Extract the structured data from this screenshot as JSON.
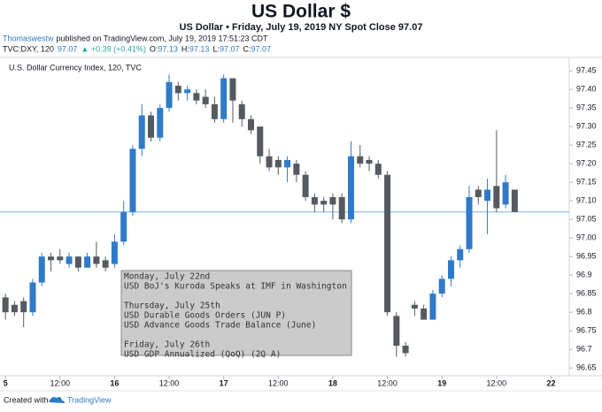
{
  "chart_data": {
    "type": "candlestick",
    "title": "US Dollar $",
    "subtitle": "US Dollar • Friday, July 19, 2019 NY Spot Close 97.07",
    "author": "Thomaswestw",
    "published": "published on TradingView.com, July 19, 2019 17:51:23 CDT",
    "quote": [
      {
        "text": "TVC:DXY, 120",
        "color": "#131722"
      },
      {
        "text": "97.07",
        "color": "#2f7ac9"
      },
      {
        "text": "▲ +0.39 (+0.41%)",
        "color": "#26a69a"
      },
      {
        "text": "O:",
        "color": "#131722"
      },
      {
        "text": "97.13",
        "color": "#2f7ac9"
      },
      {
        "text": "H:",
        "color": "#131722"
      },
      {
        "text": "97.13",
        "color": "#2f7ac9"
      },
      {
        "text": "L:",
        "color": "#131722"
      },
      {
        "text": "97.07",
        "color": "#2f7ac9"
      },
      {
        "text": "C:",
        "color": "#131722"
      },
      {
        "text": "97.07",
        "color": "#2f7ac9"
      }
    ],
    "series_name": "U.S. Dollar Currency Index, 120, TVC",
    "up_color": "#2f7ac9",
    "down_color": "#555a60",
    "x": [
      0,
      1,
      2,
      3,
      4,
      5,
      6,
      7,
      8,
      9,
      10,
      11,
      12,
      13,
      14,
      15,
      16,
      17,
      18,
      19,
      20,
      21,
      22,
      23,
      24,
      25,
      26,
      27,
      28,
      29,
      30,
      31,
      32,
      33,
      34,
      35,
      36,
      37,
      38,
      39,
      40,
      41,
      42,
      43,
      44,
      45,
      46,
      47,
      48,
      49,
      50,
      51,
      52,
      53,
      54,
      55,
      56
    ],
    "open": [
      96.84,
      96.82,
      96.83,
      96.8,
      96.88,
      96.95,
      96.95,
      96.93,
      96.95,
      96.92,
      96.95,
      96.94,
      96.93,
      96.99,
      97.07,
      97.24,
      97.33,
      97.27,
      97.35,
      97.41,
      97.39,
      97.39,
      97.38,
      97.36,
      97.32,
      97.43,
      97.36,
      97.32,
      97.3,
      97.22,
      97.21,
      97.19,
      97.2,
      97.17,
      97.11,
      97.1,
      97.11,
      97.11,
      97.05,
      97.22,
      97.21,
      97.2,
      97.17,
      96.79,
      96.71,
      96.82,
      96.81,
      96.78,
      96.85,
      96.89,
      96.94,
      96.97,
      97.13,
      97.1,
      97.14,
      97.09,
      97.13
    ],
    "high": [
      96.85,
      96.83,
      96.84,
      96.89,
      96.96,
      96.96,
      96.97,
      96.96,
      96.95,
      96.96,
      96.99,
      96.95,
      97.01,
      97.1,
      97.25,
      97.36,
      97.34,
      97.36,
      97.44,
      97.42,
      97.41,
      97.4,
      97.4,
      97.38,
      97.44,
      97.43,
      97.37,
      97.33,
      97.3,
      97.24,
      97.22,
      97.22,
      97.21,
      97.18,
      97.12,
      97.11,
      97.12,
      97.12,
      97.26,
      97.25,
      97.22,
      97.21,
      97.18,
      96.8,
      96.72,
      96.83,
      96.82,
      96.86,
      96.9,
      96.95,
      96.98,
      97.14,
      97.14,
      97.16,
      97.29,
      97.17,
      97.13
    ],
    "low": [
      96.78,
      96.79,
      96.76,
      96.79,
      96.87,
      96.91,
      96.93,
      96.92,
      96.91,
      96.92,
      96.92,
      96.91,
      96.92,
      96.98,
      97.06,
      97.22,
      97.26,
      97.26,
      97.34,
      97.37,
      97.37,
      97.36,
      97.35,
      97.31,
      97.31,
      97.31,
      97.3,
      97.28,
      97.2,
      97.18,
      97.17,
      97.15,
      97.15,
      97.1,
      97.07,
      97.07,
      97.05,
      97.04,
      97.04,
      97.19,
      97.18,
      97.16,
      96.79,
      96.68,
      96.68,
      96.79,
      96.78,
      96.78,
      96.84,
      96.87,
      96.92,
      96.96,
      97.09,
      97.01,
      97.07,
      97.08,
      97.07
    ],
    "close": [
      96.8,
      96.8,
      96.8,
      96.88,
      96.95,
      96.94,
      96.94,
      96.95,
      96.92,
      96.95,
      96.93,
      96.92,
      96.99,
      97.07,
      97.24,
      97.33,
      97.27,
      97.35,
      97.42,
      97.39,
      97.4,
      97.37,
      97.36,
      97.32,
      97.43,
      97.37,
      97.32,
      97.29,
      97.22,
      97.19,
      97.19,
      97.21,
      97.17,
      97.11,
      97.09,
      97.09,
      97.09,
      97.05,
      97.22,
      97.2,
      97.2,
      97.17,
      96.8,
      96.71,
      96.69,
      96.81,
      96.78,
      96.85,
      96.89,
      96.94,
      96.97,
      97.11,
      97.11,
      97.13,
      97.08,
      97.15,
      97.07
    ],
    "xlim": [
      -0.6,
      62
    ],
    "ylim": [
      96.629,
      97.486
    ],
    "yticks": [
      96.65,
      96.7,
      96.75,
      96.8,
      96.85,
      96.9,
      96.95,
      {
        "value": 97,
        "label": "97.00"
      },
      97.05,
      {
        "value": 97.1,
        "label": "97.10"
      },
      97.15,
      {
        "value": 97.2,
        "label": "97.20"
      },
      97.25,
      {
        "value": 97.3,
        "label": "97.30"
      },
      97.35,
      {
        "value": 97.4,
        "label": "97.40"
      },
      97.45
    ],
    "xticks": [
      {
        "value": 0,
        "label": "5"
      },
      {
        "value": 6,
        "label": "12:00"
      },
      {
        "value": 12,
        "label": "16"
      },
      {
        "value": 18,
        "label": "12:00"
      },
      {
        "value": 24,
        "label": "17"
      },
      {
        "value": 30,
        "label": "12:00"
      },
      {
        "value": 36,
        "label": "18"
      },
      {
        "value": 42,
        "label": "12:00"
      },
      {
        "value": 48,
        "label": "19"
      },
      {
        "value": 54,
        "label": "12:00"
      },
      {
        "value": 60,
        "label": "22"
      }
    ],
    "hline": 97.07,
    "annotation": [
      [
        "Monday, July 22nd",
        "USD BoJ's Kuroda Speaks at IMF in Washington"
      ],
      [
        "Thursday, July 25th",
        "USD Durable Goods Orders (JUN P)",
        "USD Advance Goods Trade Balance (June)"
      ],
      [
        "Friday, July 26th",
        "USD GDP Annualized (QoQ) (2Q A)"
      ]
    ],
    "footer": [
      "Created with",
      "TradingView"
    ]
  }
}
